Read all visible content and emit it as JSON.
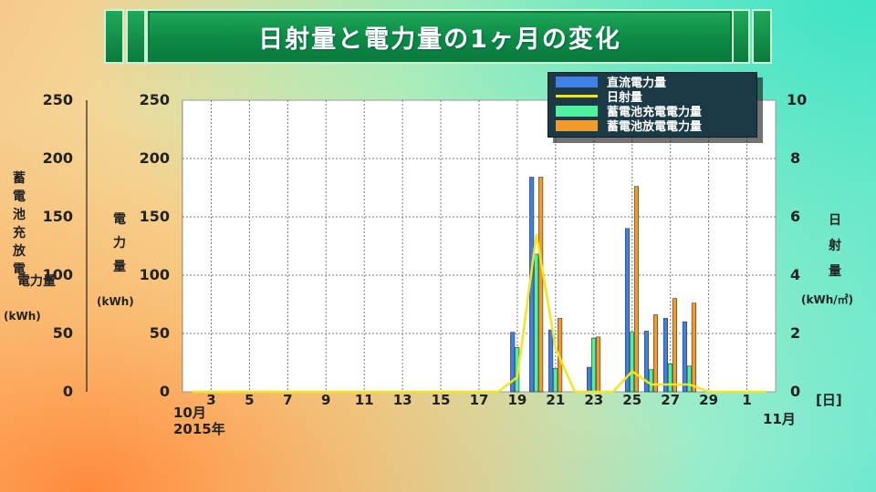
{
  "title": "日射量と電力量の1ヶ月の変化",
  "left_outer_axis": {
    "label_chars": [
      "蓄",
      "電",
      "池",
      "充",
      "放",
      "電"
    ],
    "label_chars2": [
      "電",
      "力",
      "量"
    ],
    "unit": "(kWh)",
    "ticks": [
      "250",
      "200",
      "150",
      "100",
      "50",
      "0"
    ]
  },
  "left_inner_axis": {
    "label_chars": [
      "電",
      "力",
      "量"
    ],
    "unit": "(kWh)",
    "ticks": [
      "250",
      "200",
      "150",
      "100",
      "50",
      "0"
    ]
  },
  "right_axis": {
    "label_chars": [
      "日",
      "射",
      "量"
    ],
    "unit": "(kWh/㎡)",
    "ticks": [
      "10",
      "8",
      "6",
      "4",
      "2",
      "0"
    ]
  },
  "x_axis": {
    "ticks": [
      "3",
      "5",
      "7",
      "9",
      "11",
      "13",
      "15",
      "17",
      "19",
      "21",
      "23",
      "25",
      "27",
      "29",
      "1"
    ],
    "start_month": "10月",
    "start_year": "2015年",
    "end_month": "11月",
    "unit": "[日]"
  },
  "legend": {
    "dc": "直流電力量",
    "solar": "日射量",
    "charge": "蓄電池充電電力量",
    "discharge": "蓄電池放電電力量"
  },
  "colors": {
    "dc": "#3f7fe6",
    "solar": "#f3e61a",
    "charge": "#4ff0a0",
    "discharge": "#f29a2a"
  },
  "chart_data": {
    "type": "bar",
    "x_days": [
      1,
      2,
      3,
      4,
      5,
      6,
      7,
      8,
      9,
      10,
      11,
      12,
      13,
      14,
      15,
      16,
      17,
      18,
      19,
      20,
      21,
      22,
      23,
      24,
      25,
      26,
      27,
      28,
      29,
      30,
      31
    ],
    "y_left_range": [
      0,
      250
    ],
    "y_right_range": [
      0,
      10
    ],
    "series": [
      {
        "name": "直流電力量",
        "axis": "left",
        "type": "bar",
        "values": [
          0,
          0,
          0,
          0,
          0,
          0,
          0,
          0,
          0,
          0,
          0,
          0,
          0,
          0,
          0,
          0,
          0,
          51,
          184,
          53,
          0,
          21,
          0,
          140,
          52,
          63,
          60,
          0,
          0,
          0,
          0
        ]
      },
      {
        "name": "蓄電池充電電力量",
        "axis": "left",
        "type": "bar",
        "values": [
          0,
          0,
          0,
          0,
          0,
          0,
          0,
          0,
          0,
          0,
          0,
          0,
          0,
          0,
          0,
          0,
          0,
          38,
          118,
          20,
          0,
          46,
          0,
          51,
          19,
          24,
          22,
          0,
          0,
          0,
          0
        ]
      },
      {
        "name": "蓄電池放電電力量",
        "axis": "left",
        "type": "bar",
        "values": [
          0,
          0,
          0,
          0,
          0,
          0,
          0,
          0,
          0,
          0,
          0,
          0,
          0,
          0,
          0,
          0,
          0,
          0,
          184,
          63,
          0,
          47,
          0,
          176,
          66,
          80,
          76,
          0,
          0,
          0,
          0
        ]
      },
      {
        "name": "日射量",
        "axis": "right",
        "type": "line",
        "values": [
          0,
          0,
          0,
          0,
          0,
          0,
          0,
          0,
          0,
          0,
          0,
          0,
          0,
          0,
          0,
          0,
          0,
          0.5,
          5.4,
          1.5,
          0,
          0,
          0,
          0.7,
          0.25,
          0.25,
          0.25,
          0,
          0,
          0,
          0
        ]
      }
    ]
  }
}
